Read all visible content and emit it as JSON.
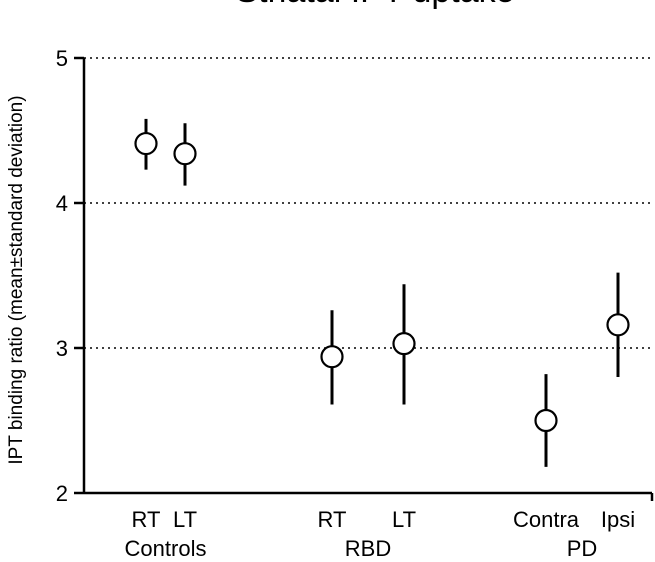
{
  "chart_data": {
    "type": "scatter",
    "title": "Striatal IPT uptake",
    "ylabel": "IPT binding ratio (mean±standard deviation)",
    "xlabel": "",
    "ylim": [
      2,
      5
    ],
    "yticks": [
      2,
      3,
      4,
      5
    ],
    "grid": "horizontal dotted at 3, 4, 5",
    "legend": "none",
    "groups": [
      {
        "name": "Controls",
        "categories": [
          "RT",
          "LT"
        ]
      },
      {
        "name": "RBD",
        "categories": [
          "RT",
          "LT"
        ]
      },
      {
        "name": "PD",
        "categories": [
          "Contra",
          "Ipsi"
        ]
      }
    ],
    "points": [
      {
        "group": "Controls",
        "category": "RT",
        "mean": 4.41,
        "low": 4.23,
        "high": 4.58
      },
      {
        "group": "Controls",
        "category": "LT",
        "mean": 4.34,
        "low": 4.12,
        "high": 4.55
      },
      {
        "group": "RBD",
        "category": "RT",
        "mean": 2.94,
        "low": 2.61,
        "high": 3.26
      },
      {
        "group": "RBD",
        "category": "LT",
        "mean": 3.03,
        "low": 2.61,
        "high": 3.44
      },
      {
        "group": "PD",
        "category": "Contra",
        "mean": 2.5,
        "low": 2.18,
        "high": 2.82
      },
      {
        "group": "PD",
        "category": "Ipsi",
        "mean": 3.16,
        "low": 2.8,
        "high": 3.52
      }
    ]
  }
}
